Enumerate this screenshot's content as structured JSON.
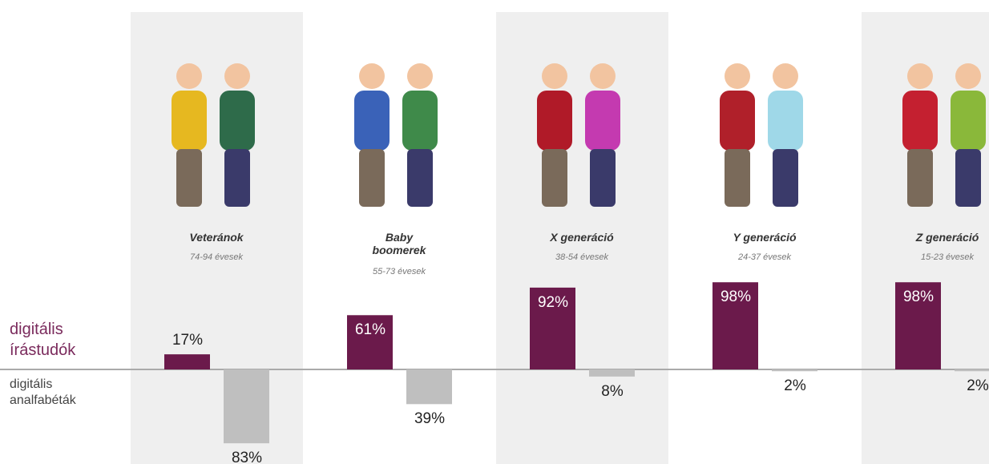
{
  "chart_data": {
    "type": "diverging-bar",
    "categories": [
      "Veteránok",
      "Baby boomerek",
      "X generáció",
      "Y generáció",
      "Z generáció"
    ],
    "category_subtitles": [
      "74-94 évesek",
      "55-73 évesek",
      "38-54 évesek",
      "24-37 évesek",
      "15-23 évesek"
    ],
    "series": [
      {
        "name": "digitális írástudók",
        "color": "#6b1a4b",
        "values": [
          17,
          61,
          92,
          98,
          98
        ],
        "value_labels": [
          "17%",
          "61%",
          "92%",
          "98%",
          "98%"
        ]
      },
      {
        "name": "digitális analfabéták",
        "color": "#bfbfbf",
        "values": [
          83,
          39,
          8,
          2,
          2
        ],
        "value_labels": [
          "83%",
          "39%",
          "8%",
          "2%",
          "2%"
        ]
      }
    ]
  }
}
